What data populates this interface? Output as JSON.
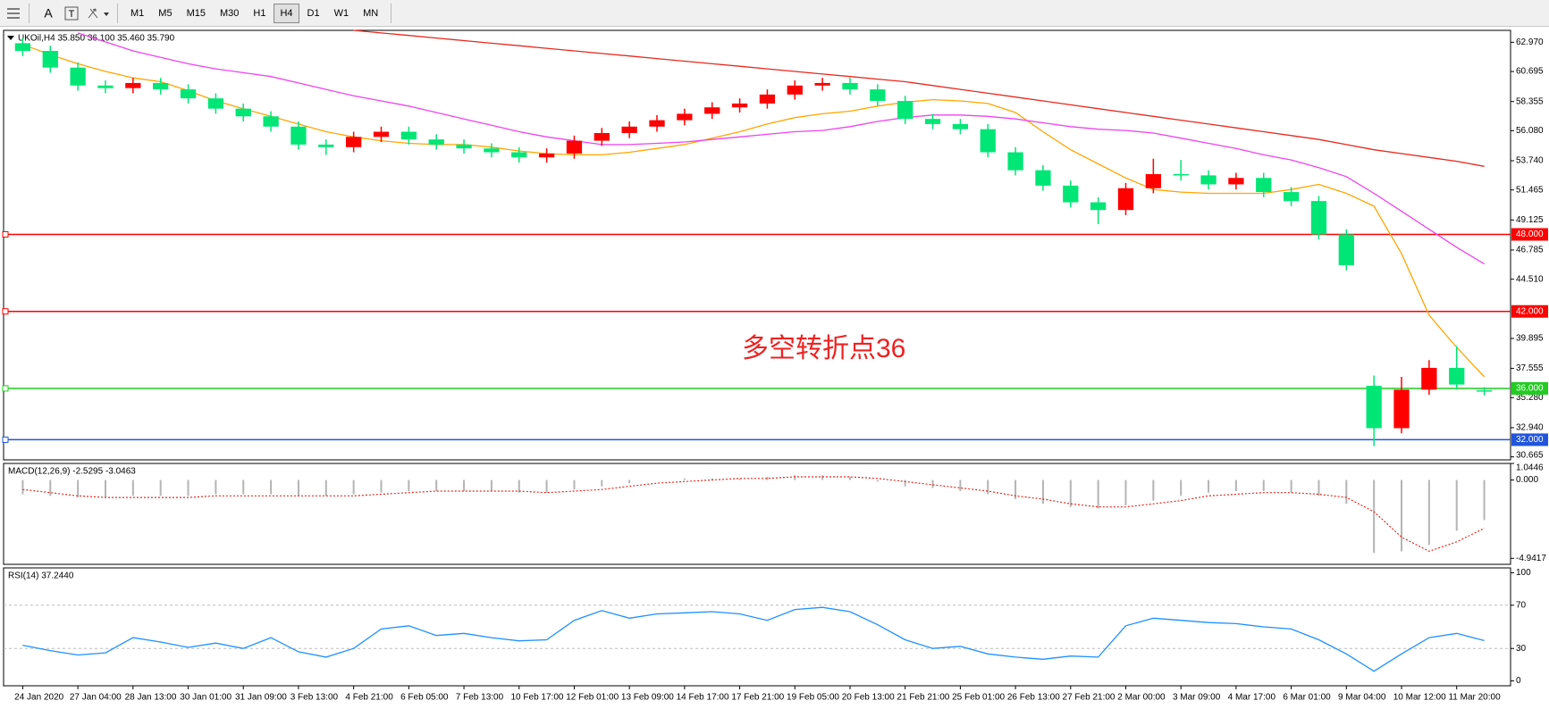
{
  "toolbar": {
    "timeframes": [
      "M1",
      "M5",
      "M15",
      "M30",
      "H1",
      "H4",
      "D1",
      "W1",
      "MN"
    ],
    "active_index": 5
  },
  "chart_data": [
    {
      "type": "candlestick",
      "title": "UKOil,H4  35.850 36.100 35.460 35.790",
      "up_color": "#ff0000",
      "down_color": "#00e676",
      "open": [
        62.9,
        62.3,
        61.0,
        59.6,
        59.4,
        59.8,
        59.3,
        58.6,
        57.8,
        57.2,
        56.4,
        55.0,
        54.8,
        55.6,
        56.0,
        55.4,
        55.0,
        54.7,
        54.4,
        54.0,
        54.3,
        55.3,
        55.9,
        56.4,
        56.9,
        57.4,
        57.9,
        58.2,
        58.9,
        59.6,
        59.8,
        59.3,
        58.4,
        57.0,
        56.6,
        56.2,
        54.4,
        53.0,
        51.8,
        50.5,
        49.9,
        51.6,
        52.7,
        52.6,
        51.9,
        52.4,
        51.3,
        50.6,
        48.0,
        36.2,
        32.9,
        35.9,
        37.6,
        35.85
      ],
      "high": [
        63.3,
        62.7,
        61.4,
        60.0,
        60.2,
        60.2,
        59.7,
        59.0,
        58.2,
        57.6,
        56.8,
        55.4,
        56.0,
        56.4,
        56.4,
        55.8,
        55.4,
        55.1,
        54.8,
        54.7,
        55.7,
        56.3,
        56.8,
        57.3,
        57.8,
        58.3,
        58.6,
        59.3,
        60.0,
        60.2,
        60.2,
        59.7,
        58.8,
        57.4,
        57.0,
        56.6,
        54.8,
        53.4,
        52.2,
        50.9,
        52.0,
        53.9,
        53.8,
        53.0,
        52.8,
        52.8,
        51.7,
        51.0,
        48.4,
        37.0,
        36.9,
        38.2,
        39.3,
        36.1
      ],
      "low": [
        61.9,
        60.6,
        59.2,
        59.0,
        59.0,
        58.9,
        58.2,
        57.4,
        56.8,
        56.0,
        54.6,
        54.2,
        54.4,
        55.2,
        55.0,
        54.6,
        54.3,
        54.0,
        53.6,
        53.6,
        53.9,
        54.9,
        55.5,
        56.0,
        56.5,
        57.0,
        57.5,
        57.8,
        58.5,
        59.2,
        58.9,
        58.0,
        56.6,
        56.2,
        55.8,
        54.0,
        52.6,
        51.4,
        50.1,
        48.8,
        49.5,
        51.2,
        52.2,
        51.5,
        51.5,
        50.9,
        50.2,
        47.6,
        45.2,
        31.5,
        32.5,
        35.5,
        35.9,
        35.46
      ],
      "close": [
        62.3,
        61.0,
        59.6,
        59.4,
        59.8,
        59.3,
        58.6,
        57.8,
        57.2,
        56.4,
        55.0,
        54.8,
        55.6,
        56.0,
        55.4,
        55.0,
        54.7,
        54.4,
        54.0,
        54.3,
        55.3,
        55.9,
        56.4,
        56.9,
        57.4,
        57.9,
        58.2,
        58.9,
        59.6,
        59.8,
        59.3,
        58.4,
        57.0,
        56.6,
        56.2,
        54.4,
        53.0,
        51.8,
        50.5,
        49.9,
        51.6,
        52.7,
        52.6,
        51.9,
        52.4,
        51.3,
        50.6,
        48.0,
        45.6,
        32.9,
        35.9,
        37.6,
        36.3,
        35.79
      ],
      "moving_averages": [
        {
          "color": "#ffa500",
          "values": [
            62.8,
            62.0,
            61.3,
            60.7,
            60.2,
            59.9,
            59.2,
            58.4,
            57.8,
            57.2,
            56.6,
            56.0,
            55.6,
            55.3,
            55.1,
            55.0,
            55.0,
            54.8,
            54.5,
            54.3,
            54.2,
            54.2,
            54.4,
            54.7,
            55.0,
            55.5,
            56.0,
            56.6,
            57.1,
            57.4,
            57.6,
            58.0,
            58.3,
            58.5,
            58.4,
            58.2,
            57.5,
            56.0,
            54.6,
            53.5,
            52.4,
            51.5,
            51.3,
            51.2,
            51.2,
            51.2,
            51.5,
            51.9,
            51.2,
            50.2,
            46.5,
            41.7,
            39.2,
            36.9
          ]
        },
        {
          "color": "#ee44ee",
          "values": [
            null,
            null,
            63.7,
            63.0,
            62.3,
            61.8,
            61.3,
            60.9,
            60.6,
            60.3,
            59.8,
            59.3,
            58.8,
            58.4,
            58.0,
            57.5,
            57.0,
            56.5,
            56.0,
            55.6,
            55.3,
            55.0,
            55.0,
            55.1,
            55.2,
            55.4,
            55.6,
            55.8,
            56.0,
            56.1,
            56.4,
            56.8,
            57.1,
            57.3,
            57.3,
            57.2,
            57.0,
            56.7,
            56.4,
            56.2,
            56.1,
            55.9,
            55.5,
            55.1,
            54.7,
            54.2,
            53.8,
            53.2,
            52.5,
            51.2,
            49.8,
            48.4,
            47.0,
            45.7
          ]
        },
        {
          "color": "#e8281e",
          "values": [
            null,
            null,
            null,
            null,
            null,
            null,
            null,
            null,
            null,
            null,
            null,
            null,
            63.9,
            63.7,
            63.5,
            63.3,
            63.1,
            62.9,
            62.7,
            62.5,
            62.3,
            62.1,
            61.9,
            61.7,
            61.5,
            61.3,
            61.1,
            60.9,
            60.7,
            60.5,
            60.3,
            60.1,
            59.9,
            59.6,
            59.3,
            59.0,
            58.7,
            58.4,
            58.1,
            57.8,
            57.5,
            57.2,
            56.9,
            56.6,
            56.3,
            56.0,
            55.7,
            55.4,
            55.0,
            54.6,
            54.3,
            54.0,
            53.7,
            53.3
          ]
        }
      ],
      "levels": [
        {
          "value": 48,
          "label": "48.000",
          "color": "#ff0000"
        },
        {
          "value": 42,
          "label": "42.000",
          "color": "#ff0000"
        },
        {
          "value": 36,
          "label": "36.000",
          "color": "#22cc22"
        },
        {
          "value": 32,
          "label": "32.000",
          "color": "#2255dd"
        }
      ],
      "annotation": {
        "text": "多空转折点36",
        "color": "#ee2222"
      },
      "xlim": [
        -0.5,
        53.5
      ],
      "ylim": [
        30.43,
        63.9
      ],
      "yticks": [
        {
          "value": 62.97,
          "label": "62.970"
        },
        60.695,
        58.355,
        {
          "value": 56.08,
          "label": "56.080"
        },
        {
          "value": 53.74,
          "label": "53.740"
        },
        51.465,
        49.125,
        46.785,
        {
          "value": 44.51,
          "label": "44.510"
        },
        39.895,
        37.555,
        {
          "value": 35.28,
          "label": "35.280"
        },
        {
          "value": 32.94,
          "label": "32.940"
        },
        30.665
      ],
      "xticks": [
        {
          "value": 0,
          "label": "24 Jan 2020"
        },
        {
          "value": 2,
          "label": "27 Jan 04:00"
        },
        {
          "value": 4,
          "label": "28 Jan 13:00"
        },
        {
          "value": 6,
          "label": "30 Jan 01:00"
        },
        {
          "value": 8,
          "label": "31 Jan 09:00"
        },
        {
          "value": 10,
          "label": "3 Feb 13:00"
        },
        {
          "value": 12,
          "label": "4 Feb 21:00"
        },
        {
          "value": 14,
          "label": "6 Feb 05:00"
        },
        {
          "value": 16,
          "label": "7 Feb 13:00"
        },
        {
          "value": 18,
          "label": "10 Feb 17:00"
        },
        {
          "value": 20,
          "label": "12 Feb 01:00"
        },
        {
          "value": 22,
          "label": "13 Feb 09:00"
        },
        {
          "value": 24,
          "label": "14 Feb 17:00"
        },
        {
          "value": 26,
          "label": "17 Feb 21:00"
        },
        {
          "value": 28,
          "label": "19 Feb 05:00"
        },
        {
          "value": 30,
          "label": "20 Feb 13:00"
        },
        {
          "value": 32,
          "label": "21 Feb 21:00"
        },
        {
          "value": 34,
          "label": "25 Feb 01:00"
        },
        {
          "value": 36,
          "label": "26 Feb 13:00"
        },
        {
          "value": 38,
          "label": "27 Feb 21:00"
        },
        {
          "value": 40,
          "label": "2 Mar 00:00"
        },
        {
          "value": 42,
          "label": "3 Mar 09:00"
        },
        {
          "value": 44,
          "label": "4 Mar 17:00"
        },
        {
          "value": 46,
          "label": "6 Mar 01:00"
        },
        {
          "value": 48,
          "label": "9 Mar 04:00"
        },
        {
          "value": 50,
          "label": "10 Mar 12:00"
        },
        {
          "value": 52,
          "label": "11 Mar 20:00"
        }
      ]
    },
    {
      "type": "macd",
      "title": "MACD(12,26,9) -2.5295 -3.0463",
      "color": "#b4b4b4",
      "line_color": "#e8281e",
      "values": [
        -0.9,
        -1.0,
        -1.1,
        -1.1,
        -1.0,
        -1.0,
        -1.0,
        -0.9,
        -0.9,
        -0.9,
        -1.0,
        -1.0,
        -0.9,
        -0.8,
        -0.7,
        -0.7,
        -0.7,
        -0.7,
        -0.8,
        -0.8,
        -0.6,
        -0.4,
        -0.2,
        0.0,
        0.1,
        0.1,
        0.1,
        0.2,
        0.3,
        0.3,
        0.2,
        -0.1,
        -0.4,
        -0.5,
        -0.7,
        -0.9,
        -1.2,
        -1.5,
        -1.7,
        -1.8,
        -1.6,
        -1.3,
        -1.0,
        -0.8,
        -0.7,
        -0.7,
        -0.8,
        -1.0,
        -1.5,
        -4.6,
        -4.5,
        -4.1,
        -3.2,
        -2.5295
      ],
      "line_values": [
        -0.6,
        -0.8,
        -1.0,
        -1.1,
        -1.1,
        -1.1,
        -1.1,
        -1.0,
        -1.0,
        -1.0,
        -1.0,
        -1.0,
        -1.0,
        -0.9,
        -0.8,
        -0.7,
        -0.7,
        -0.7,
        -0.7,
        -0.8,
        -0.7,
        -0.6,
        -0.4,
        -0.2,
        -0.1,
        0.0,
        0.1,
        0.1,
        0.2,
        0.2,
        0.2,
        0.1,
        -0.1,
        -0.3,
        -0.5,
        -0.7,
        -1.0,
        -1.2,
        -1.5,
        -1.7,
        -1.7,
        -1.5,
        -1.3,
        -1.0,
        -0.9,
        -0.8,
        -0.8,
        -0.9,
        -1.1,
        -2.0,
        -3.6,
        -4.5,
        -3.9,
        -3.0463
      ],
      "ylim": [
        -5.32,
        1.0446
      ],
      "yticks": [
        1.0446,
        {
          "value": 0,
          "label": "0.000"
        },
        -4.9417
      ]
    },
    {
      "type": "line",
      "title": "RSI(14) 37.2440",
      "color": "#1e90ff",
      "values": [
        33,
        28,
        24,
        26,
        40,
        36,
        31,
        35,
        30,
        40,
        27,
        22,
        30,
        48,
        51,
        42,
        44,
        40,
        37,
        38,
        56,
        65,
        58,
        62,
        63,
        64,
        62,
        56,
        66,
        68,
        64,
        52,
        38,
        30,
        32,
        25,
        22,
        20,
        23,
        22,
        51,
        58,
        56,
        54,
        53,
        50,
        48,
        38,
        25,
        9,
        25,
        40,
        44,
        37.244
      ],
      "ylim": [
        -4.5,
        104.5
      ],
      "yticks": [
        100,
        70,
        30,
        0
      ]
    }
  ]
}
